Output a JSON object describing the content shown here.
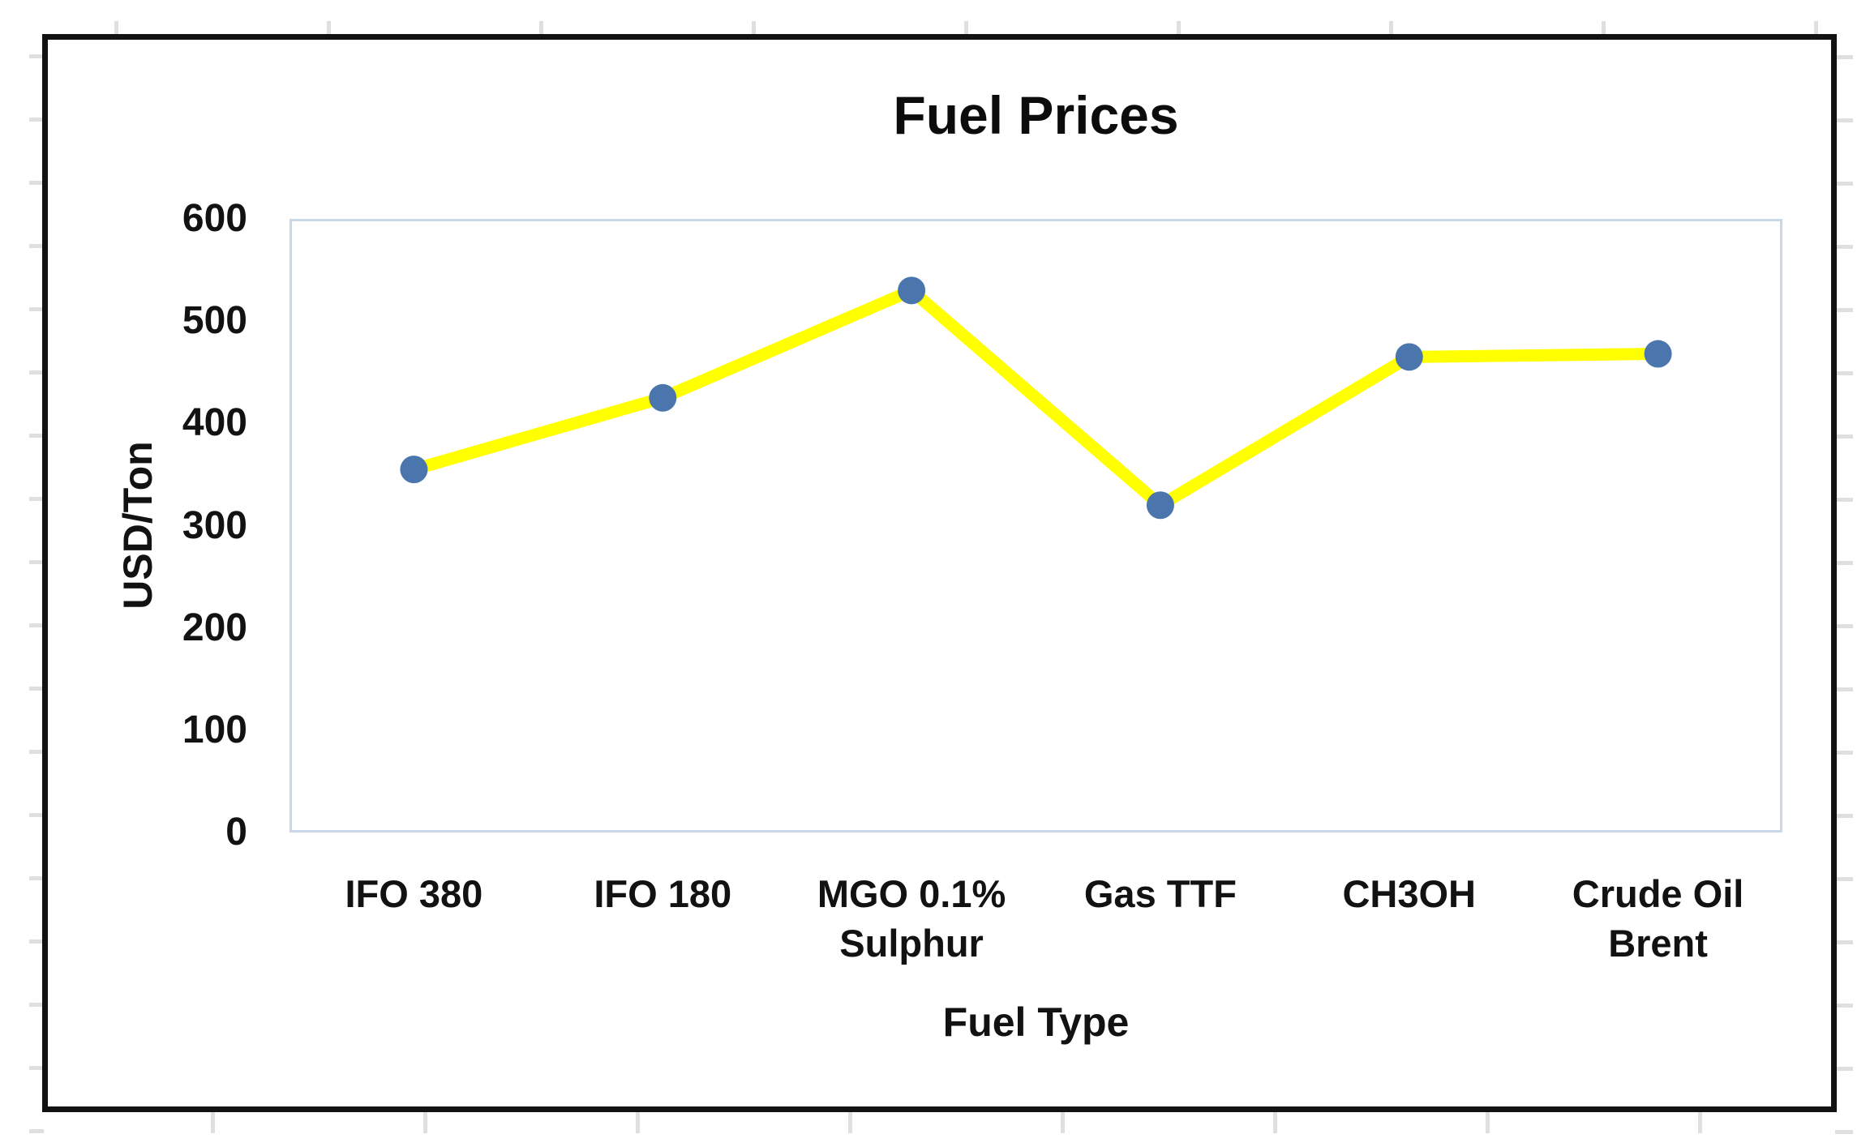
{
  "chart_data": {
    "type": "line",
    "title": "Fuel Prices",
    "xlabel": "Fuel Type",
    "ylabel": "USD/Ton",
    "categories": [
      "IFO 380",
      "IFO 180",
      "MGO 0.1% Sulphur",
      "Gas TTF",
      "CH3OH",
      "Crude Oil Brent"
    ],
    "category_lines": [
      [
        "IFO 380"
      ],
      [
        "IFO 180"
      ],
      [
        "MGO 0.1%",
        "Sulphur"
      ],
      [
        "Gas TTF"
      ],
      [
        "CH3OH"
      ],
      [
        "Crude Oil",
        "Brent"
      ]
    ],
    "series": [
      {
        "name": "Fuel Prices",
        "values": [
          355,
          425,
          530,
          320,
          465,
          468
        ]
      }
    ],
    "ylim": [
      0,
      600
    ],
    "yticks": [
      0,
      100,
      200,
      300,
      400,
      500,
      600
    ],
    "grid": false,
    "legend": "none",
    "colors": {
      "line": "#ffff00",
      "marker": "#4a75ad",
      "plot_border": "#c9d7e8",
      "frame_border": "#121212",
      "text": "#121212",
      "gridline_stub": "#dfdfdf"
    }
  }
}
